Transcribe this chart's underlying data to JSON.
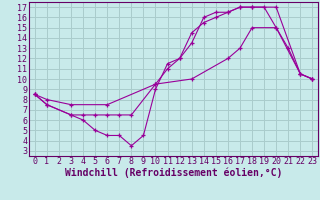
{
  "xlabel": "Windchill (Refroidissement éolien,°C)",
  "background_color": "#c8eaea",
  "grid_color": "#aacccc",
  "line_color": "#990099",
  "marker": "+",
  "xlim": [
    -0.5,
    23.5
  ],
  "ylim": [
    2.5,
    17.5
  ],
  "xticks": [
    0,
    1,
    2,
    3,
    4,
    5,
    6,
    7,
    8,
    9,
    10,
    11,
    12,
    13,
    14,
    15,
    16,
    17,
    18,
    19,
    20,
    21,
    22,
    23
  ],
  "yticks": [
    3,
    4,
    5,
    6,
    7,
    8,
    9,
    10,
    11,
    12,
    13,
    14,
    15,
    16,
    17
  ],
  "line1_x": [
    0,
    1,
    3,
    4,
    5,
    6,
    7,
    8,
    9,
    10,
    11,
    12,
    13,
    14,
    15,
    16,
    17,
    18,
    19,
    20,
    21,
    22,
    23
  ],
  "line1_y": [
    8.5,
    7.5,
    6.5,
    6.0,
    5.0,
    4.5,
    4.5,
    3.5,
    4.5,
    9.0,
    11.5,
    12.0,
    14.5,
    15.5,
    16.0,
    16.5,
    17.0,
    17.0,
    17.0,
    15.0,
    13.0,
    10.5,
    10.0
  ],
  "line2_x": [
    0,
    1,
    3,
    4,
    5,
    6,
    7,
    8,
    10,
    11,
    12,
    13,
    14,
    15,
    16,
    17,
    18,
    20,
    22,
    23
  ],
  "line2_y": [
    8.5,
    7.5,
    6.5,
    6.5,
    6.5,
    6.5,
    6.5,
    6.5,
    9.5,
    11.0,
    12.0,
    13.5,
    16.0,
    16.5,
    16.5,
    17.0,
    17.0,
    17.0,
    10.5,
    10.0
  ],
  "line3_x": [
    0,
    1,
    3,
    6,
    10,
    13,
    16,
    17,
    18,
    20,
    22,
    23
  ],
  "line3_y": [
    8.5,
    8.0,
    7.5,
    7.5,
    9.5,
    10.0,
    12.0,
    13.0,
    15.0,
    15.0,
    10.5,
    10.0
  ],
  "font_family": "monospace",
  "tick_fontsize": 6,
  "label_fontsize": 7
}
